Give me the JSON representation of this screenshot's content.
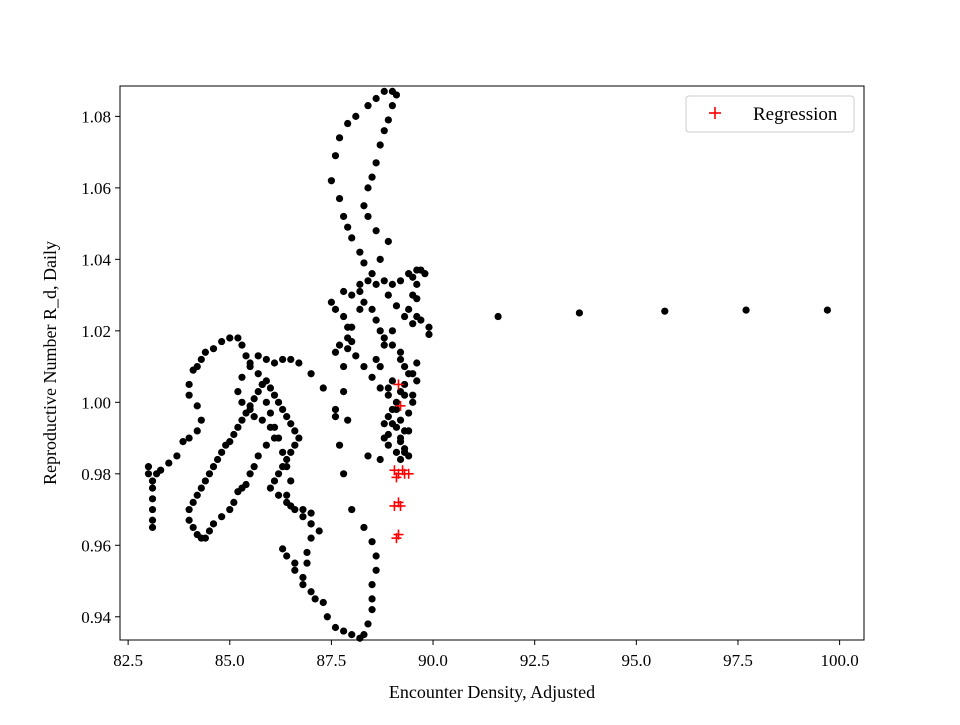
{
  "chart_data": {
    "type": "scatter",
    "xlabel": "Encounter Density, Adjusted",
    "ylabel": "Reproductive Number R_d, Daily",
    "xlim": [
      82.3,
      100.6
    ],
    "ylim": [
      0.9335,
      1.0885
    ],
    "x_ticks": [
      82.5,
      85.0,
      87.5,
      90.0,
      92.5,
      95.0,
      97.5,
      100.0
    ],
    "x_tick_labels": [
      "82.5",
      "85.0",
      "87.5",
      "90.0",
      "92.5",
      "95.0",
      "97.5",
      "100.0"
    ],
    "y_ticks": [
      0.94,
      0.96,
      0.98,
      1.0,
      1.02,
      1.04,
      1.06,
      1.08
    ],
    "y_tick_labels": [
      "0.94",
      "0.96",
      "0.98",
      "1.00",
      "1.02",
      "1.04",
      "1.06",
      "1.08"
    ],
    "grid": false,
    "legend": {
      "position": "top-right",
      "entries": [
        "Regression"
      ]
    },
    "colors": {
      "observed": "#000000",
      "regression": "#ff0000",
      "axes": "#000000"
    },
    "series": [
      {
        "marker": "circle",
        "color": "#000000",
        "points": [
          [
            83.0,
            0.982
          ],
          [
            83.0,
            0.98
          ],
          [
            83.1,
            0.976
          ],
          [
            83.1,
            0.973
          ],
          [
            83.1,
            0.97
          ],
          [
            83.1,
            0.967
          ],
          [
            83.1,
            0.965
          ],
          [
            83.1,
            0.978
          ],
          [
            83.2,
            0.98
          ],
          [
            83.3,
            0.981
          ],
          [
            83.5,
            0.983
          ],
          [
            83.7,
            0.985
          ],
          [
            83.85,
            0.989
          ],
          [
            84.0,
            0.99
          ],
          [
            84.2,
            0.992
          ],
          [
            84.3,
            0.995
          ],
          [
            84.2,
            0.999
          ],
          [
            84.0,
            1.002
          ],
          [
            84.0,
            1.005
          ],
          [
            84.1,
            1.009
          ],
          [
            84.2,
            1.01
          ],
          [
            84.3,
            1.012
          ],
          [
            84.4,
            1.014
          ],
          [
            84.6,
            1.015
          ],
          [
            84.8,
            1.017
          ],
          [
            85.0,
            1.018
          ],
          [
            85.2,
            1.018
          ],
          [
            85.3,
            1.016
          ],
          [
            85.4,
            1.013
          ],
          [
            85.5,
            1.011
          ],
          [
            85.7,
            1.008
          ],
          [
            85.8,
            1.005
          ],
          [
            85.9,
            1.0
          ],
          [
            86.0,
            0.997
          ],
          [
            86.1,
            0.993
          ],
          [
            86.2,
            0.99
          ],
          [
            86.3,
            0.986
          ],
          [
            86.4,
            0.982
          ],
          [
            86.5,
            0.978
          ],
          [
            86.4,
            0.974
          ],
          [
            86.5,
            0.971
          ],
          [
            86.8,
            0.97
          ],
          [
            87.0,
            0.969
          ],
          [
            87.0,
            0.966
          ],
          [
            87.0,
            0.962
          ],
          [
            86.9,
            0.958
          ],
          [
            86.9,
            0.955
          ],
          [
            86.8,
            0.951
          ],
          [
            86.6,
            0.955
          ],
          [
            86.4,
            0.957
          ],
          [
            86.3,
            0.959
          ],
          [
            86.6,
            0.953
          ],
          [
            86.8,
            0.949
          ],
          [
            87.0,
            0.947
          ],
          [
            87.1,
            0.945
          ],
          [
            87.3,
            0.944
          ],
          [
            87.4,
            0.94
          ],
          [
            87.6,
            0.937
          ],
          [
            87.8,
            0.936
          ],
          [
            88.0,
            0.935
          ],
          [
            88.2,
            0.934
          ],
          [
            88.3,
            0.935
          ],
          [
            88.4,
            0.938
          ],
          [
            88.5,
            0.942
          ],
          [
            88.5,
            0.945
          ],
          [
            88.5,
            0.949
          ],
          [
            88.6,
            0.953
          ],
          [
            88.6,
            0.957
          ],
          [
            88.5,
            0.961
          ],
          [
            88.3,
            0.965
          ],
          [
            88.0,
            0.97
          ],
          [
            87.8,
            0.98
          ],
          [
            87.7,
            0.988
          ],
          [
            87.6,
            0.996
          ],
          [
            87.8,
            1.003
          ],
          [
            87.8,
            1.01
          ],
          [
            87.6,
            1.014
          ],
          [
            87.7,
            1.016
          ],
          [
            87.9,
            1.015
          ],
          [
            88.0,
            1.017
          ],
          [
            87.9,
            1.021
          ],
          [
            87.8,
            1.024
          ],
          [
            87.6,
            1.026
          ],
          [
            87.5,
            1.028
          ],
          [
            87.8,
            1.031
          ],
          [
            88.0,
            1.03
          ],
          [
            88.2,
            1.033
          ],
          [
            88.4,
            1.034
          ],
          [
            88.6,
            1.033
          ],
          [
            88.8,
            1.034
          ],
          [
            89.0,
            1.033
          ],
          [
            89.2,
            1.034
          ],
          [
            89.4,
            1.036
          ],
          [
            89.5,
            1.035
          ],
          [
            89.6,
            1.037
          ],
          [
            89.7,
            1.037
          ],
          [
            89.6,
            1.033
          ],
          [
            89.5,
            1.03
          ],
          [
            89.4,
            1.026
          ],
          [
            89.5,
            1.022
          ],
          [
            89.6,
            1.024
          ],
          [
            89.7,
            1.023
          ],
          [
            89.9,
            1.021
          ],
          [
            89.9,
            1.019
          ],
          [
            89.6,
            1.011
          ],
          [
            89.5,
            1.008
          ],
          [
            89.3,
            1.005
          ],
          [
            89.2,
            1.003
          ],
          [
            89.1,
            1.0
          ],
          [
            89.0,
            0.998
          ],
          [
            88.9,
            0.996
          ],
          [
            88.8,
            0.994
          ],
          [
            88.8,
            0.99
          ],
          [
            88.9,
            0.988
          ],
          [
            89.1,
            0.993
          ],
          [
            89.2,
            0.99
          ],
          [
            89.3,
            0.987
          ],
          [
            89.4,
            0.985
          ],
          [
            89.4,
            0.992
          ],
          [
            89.4,
            0.997
          ],
          [
            89.5,
            1.002
          ],
          [
            89.6,
            1.006
          ],
          [
            89.3,
            1.01
          ],
          [
            89.2,
            1.014
          ],
          [
            89.0,
            1.016
          ],
          [
            88.8,
            1.018
          ],
          [
            88.7,
            1.02
          ],
          [
            88.6,
            1.023
          ],
          [
            88.5,
            1.026
          ],
          [
            88.3,
            1.028
          ],
          [
            88.2,
            1.031
          ],
          [
            88.5,
            1.036
          ],
          [
            88.7,
            1.04
          ],
          [
            88.9,
            1.045
          ],
          [
            88.6,
            1.048
          ],
          [
            88.4,
            1.052
          ],
          [
            88.3,
            1.055
          ],
          [
            88.4,
            1.06
          ],
          [
            88.5,
            1.063
          ],
          [
            88.6,
            1.067
          ],
          [
            88.7,
            1.072
          ],
          [
            88.8,
            1.076
          ],
          [
            88.9,
            1.079
          ],
          [
            89.0,
            1.083
          ],
          [
            89.1,
            1.086
          ],
          [
            89.0,
            1.087
          ],
          [
            88.8,
            1.087
          ],
          [
            88.6,
            1.085
          ],
          [
            88.4,
            1.083
          ],
          [
            88.1,
            1.08
          ],
          [
            87.9,
            1.078
          ],
          [
            87.7,
            1.074
          ],
          [
            87.6,
            1.069
          ],
          [
            87.5,
            1.062
          ],
          [
            87.7,
            1.057
          ],
          [
            87.8,
            1.052
          ],
          [
            87.9,
            1.049
          ],
          [
            88.0,
            1.046
          ],
          [
            88.2,
            1.042
          ],
          [
            88.3,
            1.039
          ],
          [
            88.2,
            1.026
          ],
          [
            88.0,
            1.021
          ],
          [
            87.9,
            1.018
          ],
          [
            88.1,
            1.013
          ],
          [
            88.3,
            1.01
          ],
          [
            88.5,
            1.007
          ],
          [
            88.7,
            1.004
          ],
          [
            88.9,
            1.002
          ],
          [
            89.1,
            0.998
          ],
          [
            89.2,
            0.995
          ],
          [
            89.3,
            0.992
          ],
          [
            89.2,
            0.989
          ],
          [
            89.1,
            0.986
          ],
          [
            88.7,
            0.984
          ],
          [
            88.4,
            0.985
          ],
          [
            87.9,
            0.995
          ],
          [
            87.6,
            0.998
          ],
          [
            87.3,
            1.004
          ],
          [
            87.0,
            1.008
          ],
          [
            86.7,
            1.011
          ],
          [
            86.5,
            1.012
          ],
          [
            86.3,
            1.012
          ],
          [
            86.1,
            1.011
          ],
          [
            85.9,
            1.012
          ],
          [
            85.7,
            1.013
          ],
          [
            85.5,
            1.01
          ],
          [
            85.3,
            1.007
          ],
          [
            85.2,
            1.003
          ],
          [
            85.3,
            1.0
          ],
          [
            85.5,
            0.998
          ],
          [
            85.6,
            0.996
          ],
          [
            85.8,
            0.995
          ],
          [
            86.0,
            0.993
          ],
          [
            86.1,
            0.99
          ],
          [
            85.9,
            0.988
          ],
          [
            85.7,
            0.985
          ],
          [
            85.6,
            0.982
          ],
          [
            85.5,
            0.98
          ],
          [
            85.4,
            0.977
          ],
          [
            85.3,
            0.976
          ],
          [
            85.2,
            0.975
          ],
          [
            85.1,
            0.972
          ],
          [
            85.0,
            0.97
          ],
          [
            84.8,
            0.968
          ],
          [
            84.6,
            0.966
          ],
          [
            84.5,
            0.964
          ],
          [
            84.4,
            0.962
          ],
          [
            84.3,
            0.962
          ],
          [
            84.2,
            0.963
          ],
          [
            84.1,
            0.965
          ],
          [
            84.0,
            0.967
          ],
          [
            84.0,
            0.97
          ],
          [
            84.1,
            0.972
          ],
          [
            84.2,
            0.974
          ],
          [
            84.3,
            0.976
          ],
          [
            84.4,
            0.978
          ],
          [
            84.5,
            0.98
          ],
          [
            84.6,
            0.982
          ],
          [
            84.7,
            0.984
          ],
          [
            84.8,
            0.986
          ],
          [
            84.9,
            0.988
          ],
          [
            85.0,
            0.989
          ],
          [
            85.1,
            0.991
          ],
          [
            85.2,
            0.993
          ],
          [
            85.3,
            0.995
          ],
          [
            85.4,
            0.997
          ],
          [
            85.5,
            0.999
          ],
          [
            85.6,
            1.001
          ],
          [
            85.7,
            1.003
          ],
          [
            85.8,
            1.005
          ],
          [
            85.9,
            1.006
          ],
          [
            86.0,
            1.004
          ],
          [
            86.1,
            1.002
          ],
          [
            86.2,
            1.0
          ],
          [
            86.3,
            0.998
          ],
          [
            86.4,
            0.996
          ],
          [
            86.5,
            0.994
          ],
          [
            86.6,
            0.992
          ],
          [
            86.7,
            0.99
          ],
          [
            86.6,
            0.988
          ],
          [
            86.5,
            0.986
          ],
          [
            86.4,
            0.984
          ],
          [
            86.3,
            0.982
          ],
          [
            86.2,
            0.98
          ],
          [
            86.1,
            0.978
          ],
          [
            86.0,
            0.976
          ],
          [
            86.2,
            0.974
          ],
          [
            86.4,
            0.972
          ],
          [
            86.6,
            0.97
          ],
          [
            86.8,
            0.968
          ],
          [
            87.0,
            0.966
          ],
          [
            87.2,
            0.964
          ],
          [
            88.9,
            1.03
          ],
          [
            89.1,
            1.027
          ],
          [
            89.3,
            1.024
          ],
          [
            89.0,
            1.02
          ],
          [
            88.8,
            1.016
          ],
          [
            89.2,
            1.012
          ],
          [
            89.4,
            1.008
          ],
          [
            89.0,
            1.006
          ],
          [
            88.9,
            1.004
          ],
          [
            89.3,
            1.002
          ],
          [
            89.5,
            1.0
          ],
          [
            89.0,
            0.994
          ],
          [
            88.9,
            0.991
          ],
          [
            89.2,
            0.984
          ],
          [
            89.3,
            0.986
          ],
          [
            88.7,
            1.01
          ],
          [
            88.6,
            1.012
          ],
          [
            89.8,
            1.036
          ],
          [
            89.6,
            1.029
          ],
          [
            91.6,
            1.024
          ],
          [
            93.6,
            1.025
          ],
          [
            95.7,
            1.0255
          ],
          [
            97.7,
            1.0258
          ],
          [
            99.7,
            1.0258
          ]
        ]
      },
      {
        "name": "Regression",
        "marker": "plus",
        "color": "#ff0000",
        "points": [
          [
            89.15,
            1.005
          ],
          [
            89.2,
            0.999
          ],
          [
            89.05,
            0.981
          ],
          [
            89.15,
            0.98
          ],
          [
            89.25,
            0.981
          ],
          [
            89.3,
            0.98
          ],
          [
            89.4,
            0.98
          ],
          [
            89.1,
            0.979
          ],
          [
            89.05,
            0.971
          ],
          [
            89.15,
            0.972
          ],
          [
            89.2,
            0.971
          ],
          [
            89.1,
            0.962
          ],
          [
            89.15,
            0.963
          ]
        ]
      }
    ]
  }
}
